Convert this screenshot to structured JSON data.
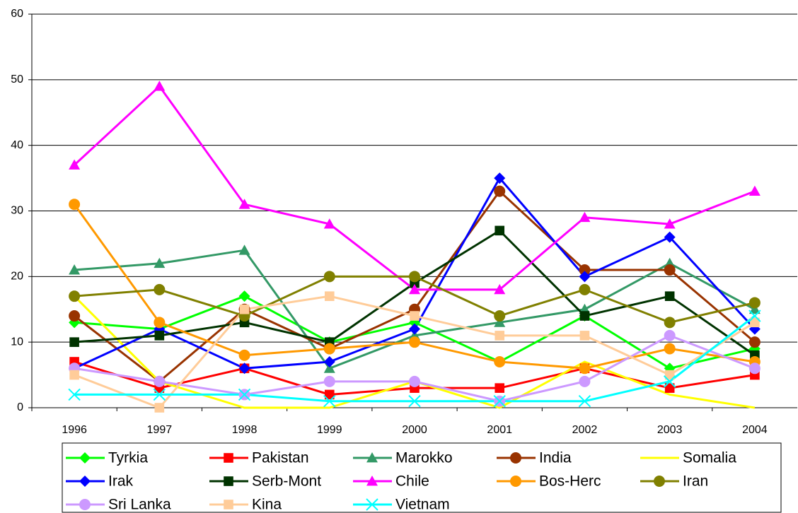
{
  "chart_data": {
    "type": "line",
    "categories": [
      "1996",
      "1997",
      "1998",
      "1999",
      "2000",
      "2001",
      "2002",
      "2003",
      "2004"
    ],
    "ylim": [
      0,
      60
    ],
    "yticks": [
      0,
      10,
      20,
      30,
      40,
      50,
      60
    ],
    "grid": true,
    "series": [
      {
        "name": "Tyrkia",
        "color": "#00ff00",
        "marker": "diamond",
        "values": [
          13,
          12,
          17,
          10,
          13,
          7,
          14,
          6,
          9
        ]
      },
      {
        "name": "Pakistan",
        "color": "#ff0000",
        "marker": "square",
        "values": [
          7,
          3,
          6,
          2,
          3,
          3,
          6,
          3,
          5
        ]
      },
      {
        "name": "Marokko",
        "color": "#339966",
        "marker": "triangle",
        "values": [
          21,
          22,
          24,
          6,
          11,
          13,
          15,
          22,
          15
        ]
      },
      {
        "name": "India",
        "color": "#993300",
        "marker": "circle",
        "values": [
          14,
          4,
          15,
          9,
          15,
          33,
          21,
          21,
          10
        ]
      },
      {
        "name": "Somalia",
        "color": "#ffff00",
        "marker": "none",
        "values": [
          17,
          4,
          0,
          0,
          4,
          0,
          7,
          2,
          0
        ]
      },
      {
        "name": "Irak",
        "color": "#0000ff",
        "marker": "diamond",
        "values": [
          6,
          12,
          6,
          7,
          12,
          35,
          20,
          26,
          12
        ]
      },
      {
        "name": "Serb-Mont",
        "color": "#003300",
        "marker": "square",
        "values": [
          10,
          11,
          13,
          10,
          19,
          27,
          14,
          17,
          8
        ]
      },
      {
        "name": "Chile",
        "color": "#ff00ff",
        "marker": "triangle",
        "values": [
          37,
          49,
          31,
          28,
          18,
          18,
          29,
          28,
          33
        ]
      },
      {
        "name": "Bos-Herc",
        "color": "#ff9900",
        "marker": "circle",
        "values": [
          31,
          13,
          8,
          9,
          10,
          7,
          6,
          9,
          7
        ]
      },
      {
        "name": "Iran",
        "color": "#808000",
        "marker": "circle",
        "values": [
          17,
          18,
          14,
          20,
          20,
          14,
          18,
          13,
          16
        ]
      },
      {
        "name": "Sri Lanka",
        "color": "#cc99ff",
        "marker": "circle",
        "values": [
          6,
          4,
          2,
          4,
          4,
          1,
          4,
          11,
          6
        ]
      },
      {
        "name": "Kina",
        "color": "#ffcc99",
        "marker": "square",
        "values": [
          5,
          0,
          15,
          17,
          14,
          11,
          11,
          5,
          13
        ]
      },
      {
        "name": "Vietnam",
        "color": "#00ffff",
        "marker": "x",
        "values": [
          2,
          2,
          2,
          1,
          1,
          1,
          1,
          4,
          14
        ]
      }
    ]
  }
}
